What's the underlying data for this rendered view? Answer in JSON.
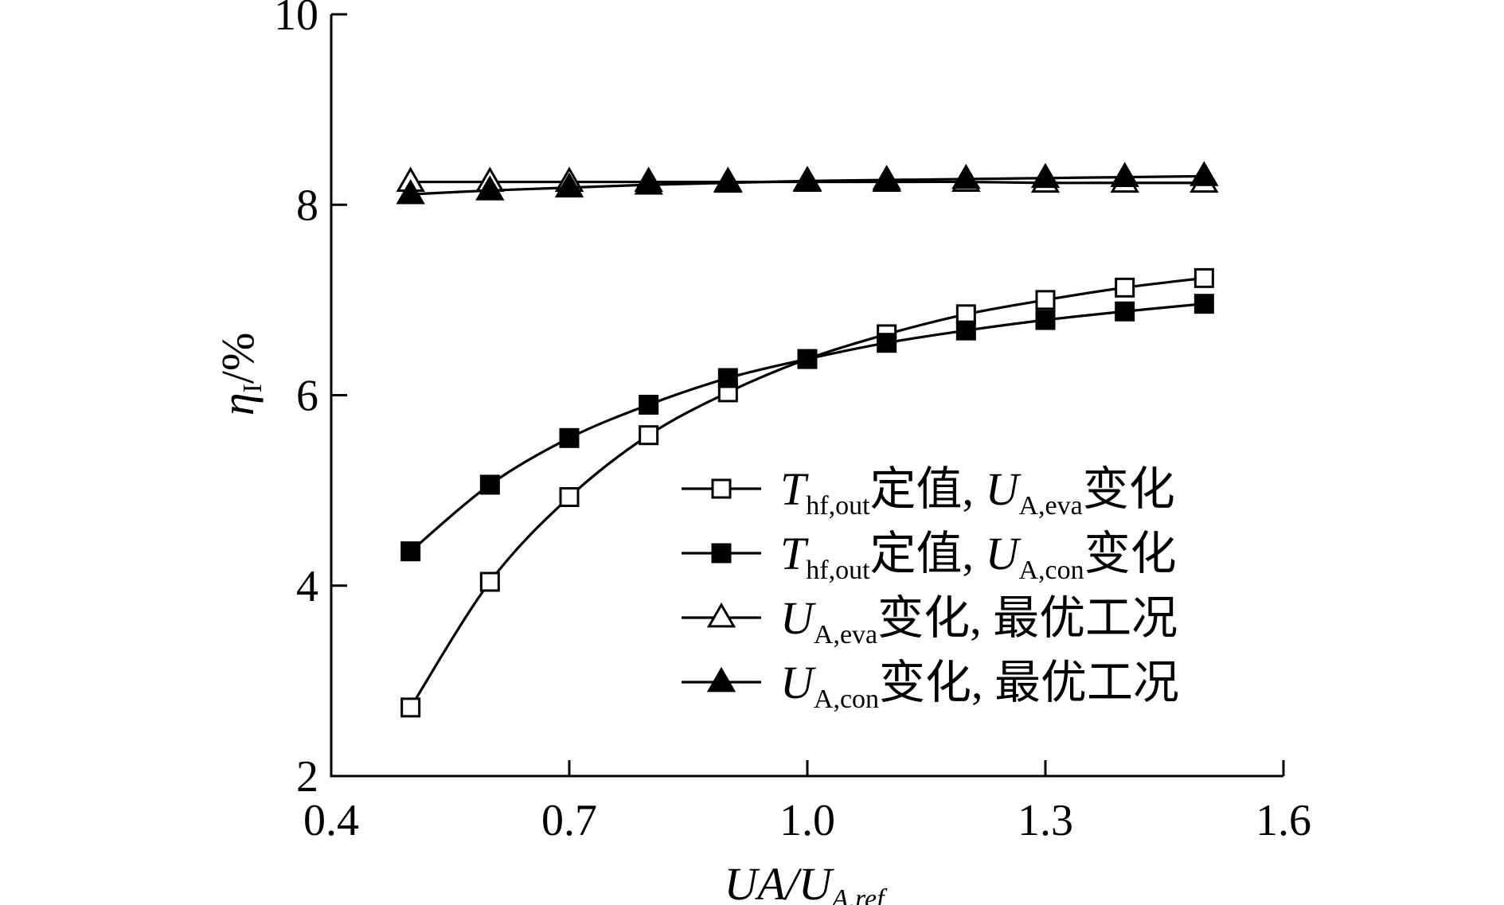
{
  "chart_data": {
    "type": "line",
    "xlabel": {
      "main": "UA/U",
      "sub": "A,ref"
    },
    "ylabel": {
      "main": "η",
      "sub": "I",
      "suffix": "/%"
    },
    "xlim": [
      0.4,
      1.6
    ],
    "ylim": [
      2,
      10
    ],
    "xticks": [
      0.4,
      0.7,
      1.0,
      1.3,
      1.6
    ],
    "xtick_labels": [
      "0.4",
      "0.7",
      "1.0",
      "1.3",
      "1.6"
    ],
    "yticks": [
      2,
      4,
      6,
      8,
      10
    ],
    "ytick_labels": [
      "2",
      "4",
      "6",
      "8",
      "10"
    ],
    "grid": false,
    "legend_position": "center-right",
    "x": [
      0.5,
      0.6,
      0.7,
      0.8,
      0.9,
      1.0,
      1.1,
      1.2,
      1.3,
      1.4,
      1.5
    ],
    "series": [
      {
        "marker": "square-open",
        "legend": {
          "a": "T",
          "a_sub": "hf,out",
          "b": "定值, ",
          "c": "U",
          "c_sub": "A,eva",
          "d": "变化"
        },
        "values": [
          2.72,
          4.04,
          4.93,
          5.58,
          6.03,
          6.38,
          6.64,
          6.85,
          7.0,
          7.13,
          7.23
        ]
      },
      {
        "marker": "square-filled",
        "legend": {
          "a": "T",
          "a_sub": "hf,out",
          "b": "定值, ",
          "c": "U",
          "c_sub": "A,con",
          "d": "变化"
        },
        "values": [
          4.36,
          5.06,
          5.55,
          5.9,
          6.18,
          6.38,
          6.55,
          6.68,
          6.79,
          6.88,
          6.96
        ]
      },
      {
        "marker": "triangle-open",
        "legend": {
          "a": "U",
          "a_sub": "A,eva",
          "b": "变化, 最优工况"
        },
        "values": [
          8.24,
          8.24,
          8.24,
          8.24,
          8.24,
          8.24,
          8.24,
          8.24,
          8.23,
          8.23,
          8.23
        ]
      },
      {
        "marker": "triangle-filled",
        "legend": {
          "a": "U",
          "a_sub": "A,con",
          "b": "变化, 最优工况"
        },
        "values": [
          8.11,
          8.15,
          8.18,
          8.21,
          8.23,
          8.25,
          8.26,
          8.27,
          8.28,
          8.29,
          8.3
        ]
      }
    ]
  }
}
